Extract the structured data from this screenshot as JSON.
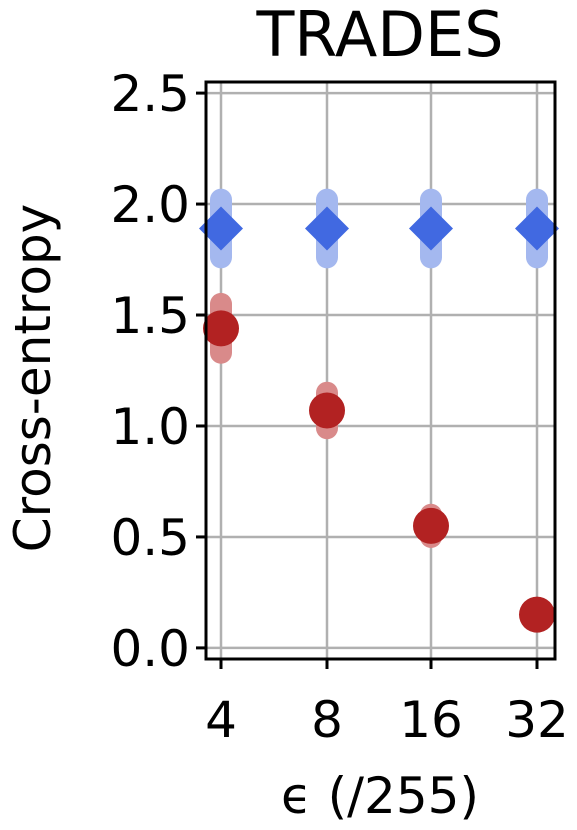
{
  "chart_data": {
    "type": "scatter",
    "title": "TRADES",
    "xlabel": "ϵ (/255)",
    "ylabel": "Cross-entropy",
    "categories": [
      "4",
      "8",
      "16",
      "32"
    ],
    "ylim": [
      -0.05,
      2.55
    ],
    "yticks": [
      "0.0",
      "0.5",
      "1.0",
      "1.5",
      "2.0",
      "2.5"
    ],
    "grid": true,
    "legend": "none",
    "series": [
      {
        "marker": "diamond",
        "color": "#4169e1",
        "error_color": "#a4b8ef",
        "values": [
          1.89,
          1.89,
          1.89,
          1.89
        ],
        "error": [
          0.13,
          0.13,
          0.13,
          0.13
        ]
      },
      {
        "marker": "circle",
        "color": "#b22222",
        "error_color": "#d98a8a",
        "values": [
          1.44,
          1.07,
          0.55,
          0.15
        ],
        "error": [
          0.11,
          0.08,
          0.05,
          0.02
        ]
      }
    ]
  }
}
